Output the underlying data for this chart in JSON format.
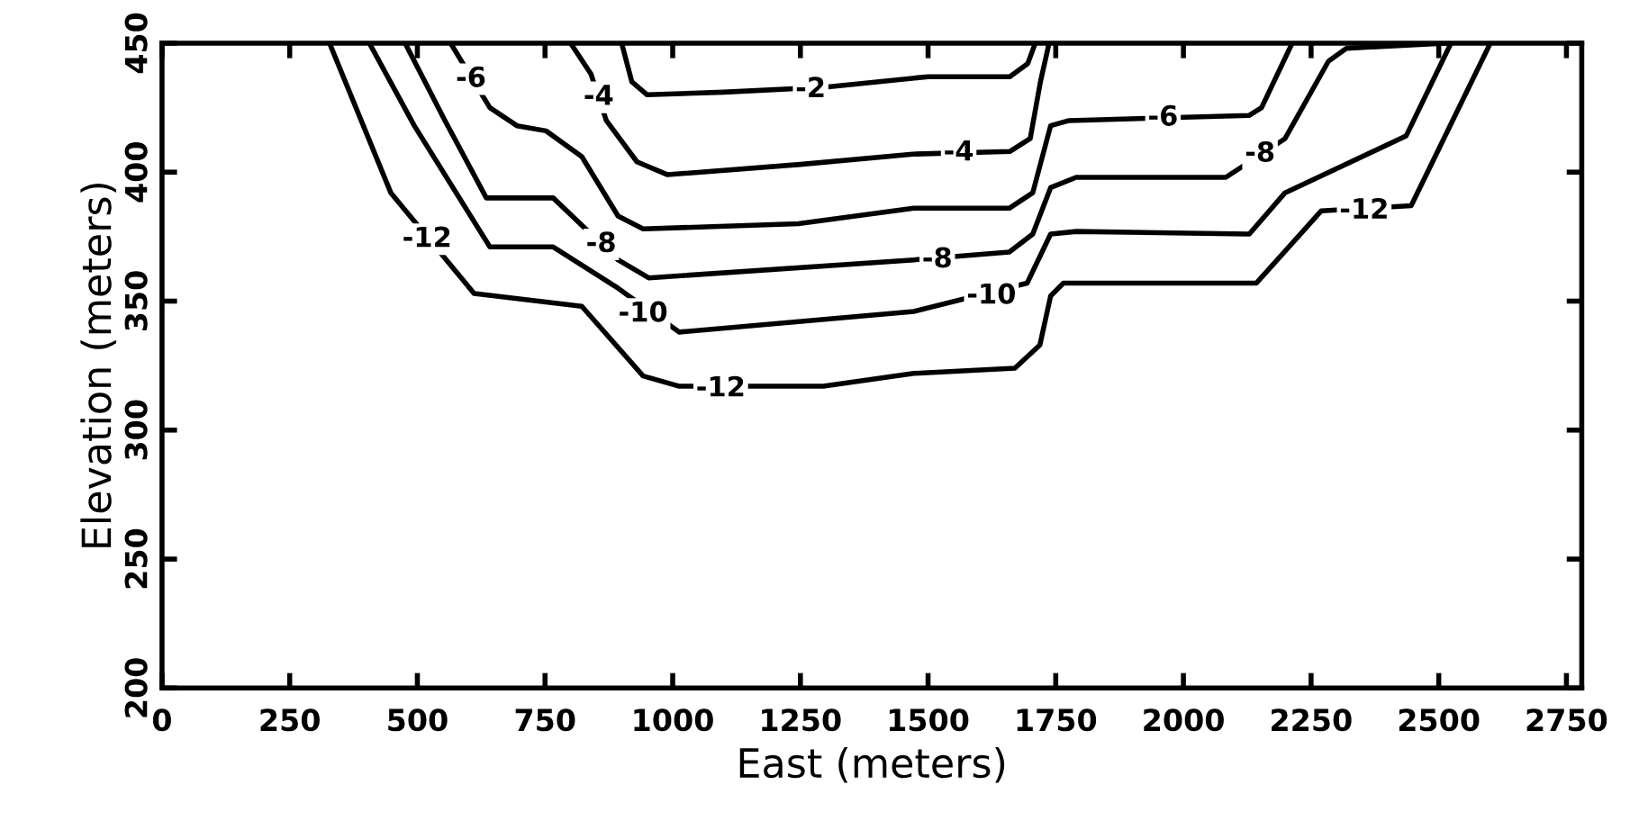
{
  "chart_data": {
    "type": "line",
    "xlabel": "East (meters)",
    "ylabel": "Elevation (meters)",
    "xlim": [
      0,
      2780
    ],
    "ylim": [
      200,
      450
    ],
    "xticks": [
      0,
      250,
      500,
      750,
      1000,
      1250,
      1500,
      1750,
      2000,
      2250,
      2500,
      2750
    ],
    "yticks": [
      200,
      250,
      300,
      350,
      400,
      450
    ],
    "marker": "none",
    "line_style": "solid",
    "series": [
      {
        "color": "#000000",
        "x": [
          900,
          920,
          950,
          1100,
          1300,
          1500,
          1660,
          1695,
          1710
        ],
        "values": [
          450,
          435,
          430,
          431,
          433,
          437,
          437,
          442,
          450
        ]
      },
      {
        "color": "#000000",
        "x": [
          800,
          840,
          870,
          930,
          990,
          1250,
          1470,
          1660,
          1700,
          1720,
          1737
        ],
        "values": [
          450,
          438,
          420,
          404,
          399,
          403,
          407,
          408,
          413,
          435,
          450
        ]
      },
      {
        "color": "#000000",
        "x": [
          565,
          642,
          695,
          752,
          822,
          893,
          942,
          1246,
          1472,
          1659,
          1705,
          1740,
          1776,
          2129,
          2153,
          2213
        ],
        "values": [
          450,
          425,
          418,
          416,
          406,
          383,
          378,
          380,
          386,
          386,
          392,
          418,
          420,
          422,
          425,
          450
        ]
      },
      {
        "color": "#000000",
        "x": [
          476,
          554,
          635,
          766,
          893,
          953,
          1472,
          1659,
          1705,
          1740,
          1790,
          2083,
          2199,
          2284,
          2319,
          2517
        ],
        "values": [
          450,
          420,
          390,
          390,
          366,
          359,
          366,
          369,
          376,
          394,
          398,
          398,
          413,
          443,
          448,
          450
        ]
      },
      {
        "color": "#000000",
        "x": [
          406,
          494,
          642,
          766,
          893,
          1013,
          1472,
          1694,
          1740,
          1790,
          2129,
          2199,
          2436,
          2524
        ],
        "values": [
          450,
          418,
          371,
          371,
          355,
          338,
          346,
          357,
          376,
          377,
          376,
          392,
          414,
          450
        ]
      },
      {
        "color": "#000000",
        "x": [
          328,
          448,
          611,
          822,
          942,
          1013,
          1295,
          1472,
          1670,
          1719,
          1740,
          1765,
          2143,
          2270,
          2446,
          2601
        ],
        "values": [
          450,
          392,
          353,
          348,
          321,
          317,
          317,
          322,
          324,
          333,
          352,
          357,
          357,
          385,
          387,
          450
        ]
      }
    ],
    "annotations": [
      {
        "text": "-2",
        "x": 1270,
        "y": 432
      },
      {
        "text": "-4",
        "x": 855,
        "y": 429
      },
      {
        "text": "-4",
        "x": 1560,
        "y": 407.5
      },
      {
        "text": "-6",
        "x": 605,
        "y": 436
      },
      {
        "text": "-6",
        "x": 1960,
        "y": 421
      },
      {
        "text": "-8",
        "x": 860,
        "y": 372
      },
      {
        "text": "-8",
        "x": 1518,
        "y": 366
      },
      {
        "text": "-8",
        "x": 2150,
        "y": 407
      },
      {
        "text": "-10",
        "x": 942,
        "y": 345
      },
      {
        "text": "-10",
        "x": 1624,
        "y": 352
      },
      {
        "text": "-12",
        "x": 519,
        "y": 374
      },
      {
        "text": "-12",
        "x": 1094,
        "y": 316
      },
      {
        "text": "-12",
        "x": 2354,
        "y": 385
      }
    ]
  }
}
